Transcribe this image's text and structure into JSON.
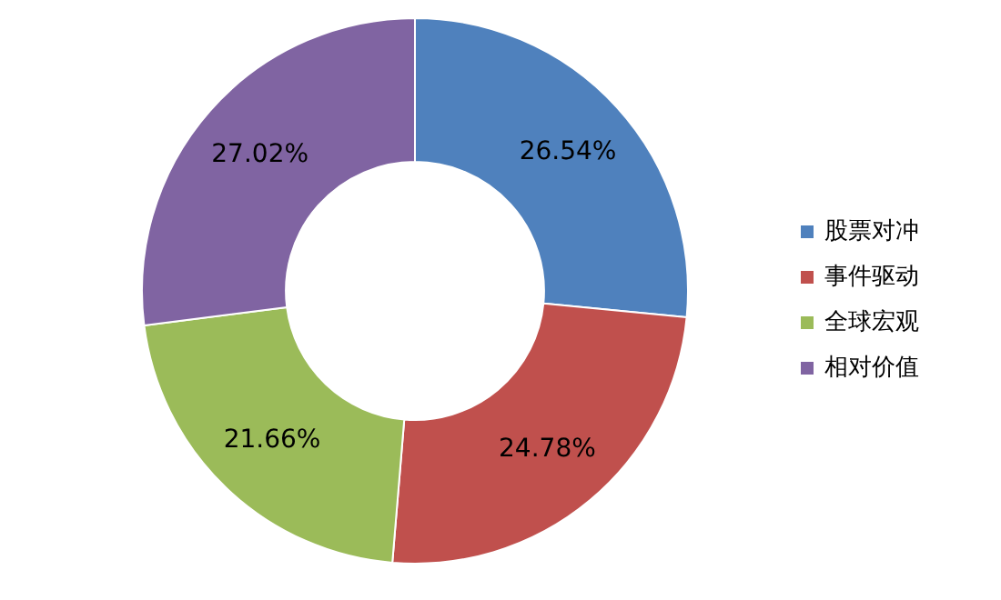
{
  "chart_data": {
    "type": "donut",
    "categories": [
      "股票对冲",
      "事件驱动",
      "全球宏观",
      "相对价值"
    ],
    "values": [
      26.54,
      24.78,
      21.66,
      27.02
    ],
    "colors": [
      "#4f81bd",
      "#c0504d",
      "#9bbb59",
      "#8064a2"
    ],
    "value_labels": [
      "26.54%",
      "24.78%",
      "21.66%",
      "27.02%"
    ],
    "legend": "right"
  }
}
